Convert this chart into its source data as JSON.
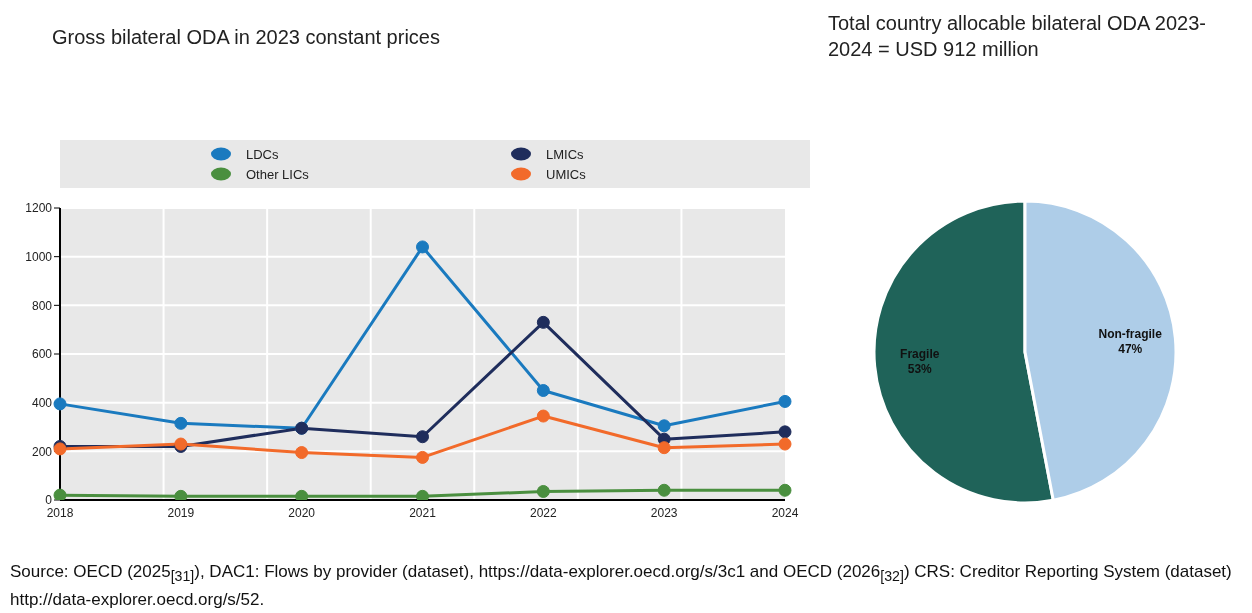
{
  "chart_data": [
    {
      "type": "line",
      "title": "Gross bilateral ODA in 2023 constant prices",
      "categories": [
        "2018",
        "2019",
        "2020",
        "2021",
        "2022",
        "2023",
        "2024"
      ],
      "series": [
        {
          "name": "LDCs",
          "color": "#1a7abf",
          "values": [
            395,
            315,
            295,
            1040,
            450,
            305,
            405
          ]
        },
        {
          "name": "Other LICs",
          "color": "#4a8f3f",
          "values": [
            20,
            15,
            15,
            15,
            35,
            40,
            40
          ]
        },
        {
          "name": "LMICs",
          "color": "#1f2d5c",
          "values": [
            220,
            220,
            295,
            260,
            730,
            250,
            280
          ]
        },
        {
          "name": "UMICs",
          "color": "#f26a2a",
          "values": [
            210,
            230,
            195,
            175,
            345,
            215,
            230
          ]
        }
      ],
      "ylim": [
        0,
        1200
      ],
      "yticks": [
        0,
        200,
        400,
        600,
        800,
        1000,
        1200
      ],
      "grid": true,
      "legend": "top",
      "marker": "circle",
      "line_style": "solid",
      "annotations": [
        "Source: OECD (2025$_{[31]}$), DAC1: Flows by provider (dataset), https://data-explorer.oecd.org/s/3c1 and OECD (2026$_{[32]}$) CRS: Creditor Reporting System (dataset) http://data-explorer.oecd.org/s/52."
      ]
    },
    {
      "type": "pie",
      "title": "Total country allocable bilateral ODA 2023-2024 = USD 912 million",
      "categories": [
        "Fragile",
        "Non-fragile"
      ],
      "values": [
        53,
        47
      ],
      "colors": [
        "#1f6359",
        "#aecde8"
      ],
      "value_labels": [
        "53%",
        "47%"
      ]
    }
  ]
}
